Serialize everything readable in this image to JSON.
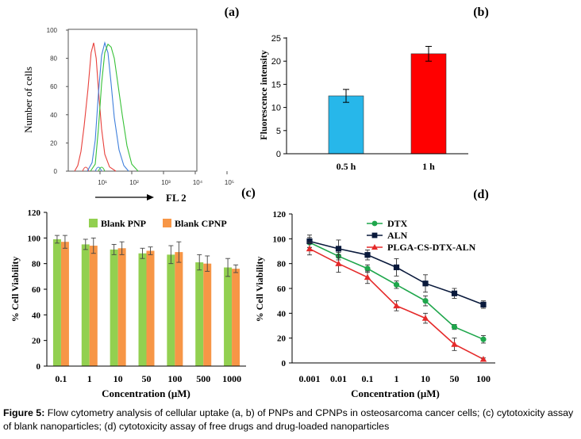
{
  "panel_labels": {
    "a": "(a)",
    "b": "(b)",
    "c": "(c)",
    "d": "(d)"
  },
  "caption": {
    "label": "Figure 5:",
    "text": "Flow cytometry analysis of cellular uptake (a, b) of PNPs and CPNPs in osteosarcoma cancer cells; (c) cytotoxicity assay of blank nanoparticles; (d) cytotoxicity assay of free drugs and drug-loaded nanoparticles"
  },
  "chart_data": [
    {
      "id": "a",
      "type": "line",
      "ylabel": "Number of cells",
      "xlabel": "FL 2",
      "yticks": [
        "100",
        "80",
        "60",
        "40",
        "20",
        "0"
      ],
      "xticks": [
        "10¹",
        "10²",
        "10³",
        "10⁴",
        "10⁵"
      ],
      "ylim": [
        0,
        100
      ],
      "x_scale": "log",
      "series": [
        {
          "color": "#e8413c",
          "x": [
            0.2,
            0.3,
            0.4,
            0.5,
            0.62,
            0.72,
            0.8,
            0.88,
            0.96,
            1.05,
            1.15,
            1.3,
            1.5
          ],
          "y": [
            0,
            4,
            14,
            32,
            58,
            84,
            91,
            80,
            55,
            30,
            12,
            3,
            0
          ]
        },
        {
          "color": "#3f7fdc",
          "x": [
            0.6,
            0.75,
            0.85,
            0.95,
            1.05,
            1.15,
            1.25,
            1.35,
            1.45,
            1.6,
            1.75,
            1.9
          ],
          "y": [
            0,
            6,
            22,
            55,
            82,
            91,
            84,
            62,
            38,
            15,
            4,
            0
          ]
        },
        {
          "color": "#37c137",
          "x": [
            0.7,
            0.85,
            0.95,
            1.05,
            1.15,
            1.25,
            1.35,
            1.45,
            1.55,
            1.7,
            1.85,
            2.0,
            2.2
          ],
          "y": [
            0,
            5,
            30,
            62,
            84,
            90,
            88,
            80,
            64,
            40,
            18,
            5,
            0
          ]
        }
      ]
    },
    {
      "id": "b",
      "type": "bar",
      "categories": [
        "0.5 h",
        "1 h"
      ],
      "values": [
        12.5,
        21.6
      ],
      "errors": [
        1.4,
        1.6
      ],
      "colors": [
        "#27b7ea",
        "#ff0000"
      ],
      "ylabel": "Fluorescence intensity",
      "ylim": [
        0,
        25
      ],
      "yticks": [
        0,
        5,
        10,
        15,
        20,
        25
      ]
    },
    {
      "id": "c",
      "type": "bar",
      "categories": [
        "0.1",
        "1",
        "10",
        "50",
        "100",
        "500",
        "1000"
      ],
      "series": [
        {
          "name": "Blank PNP",
          "color": "#92d050",
          "values": [
            99,
            95,
            91,
            88,
            87,
            81,
            77
          ],
          "errors": [
            3,
            4,
            4,
            4,
            7,
            6,
            7
          ]
        },
        {
          "name": "Blank CPNP",
          "color": "#f79646",
          "values": [
            97,
            94,
            92,
            90,
            89,
            80,
            76
          ],
          "errors": [
            5,
            6,
            5,
            3,
            8,
            6,
            3
          ]
        }
      ],
      "xlabel": "Concentration  (μM)",
      "ylabel": "% Cell Viability",
      "ylim": [
        0,
        120
      ],
      "yticks": [
        0,
        20,
        40,
        60,
        80,
        100,
        120
      ],
      "legend": "top"
    },
    {
      "id": "d",
      "type": "line",
      "categories": [
        "0.001",
        "0.01",
        "0.1",
        "1",
        "10",
        "50",
        "100"
      ],
      "series": [
        {
          "name": "DTX",
          "color": "#1ea64b",
          "marker": "circle",
          "values": [
            97,
            86,
            76,
            63,
            50,
            29,
            19
          ],
          "errors": [
            4,
            3,
            3,
            3,
            4,
            2,
            3
          ]
        },
        {
          "name": "ALN",
          "color": "#0a1a3c",
          "marker": "square",
          "values": [
            98,
            92,
            87,
            77,
            64,
            56,
            47
          ],
          "errors": [
            5,
            7,
            4,
            7,
            7,
            4,
            3
          ]
        },
        {
          "name": "PLGA-CS-DTX-ALN",
          "color": "#e52a2a",
          "marker": "triangle",
          "values": [
            92,
            80,
            69,
            46,
            36,
            15,
            3
          ],
          "errors": [
            5,
            7,
            5,
            4,
            4,
            5,
            1
          ]
        }
      ],
      "xlabel": "Concentration  (μM)",
      "ylabel": "% Cell Viability",
      "ylim": [
        0,
        120
      ],
      "yticks": [
        0,
        20,
        40,
        60,
        80,
        100,
        120
      ],
      "legend": "top-right"
    }
  ]
}
